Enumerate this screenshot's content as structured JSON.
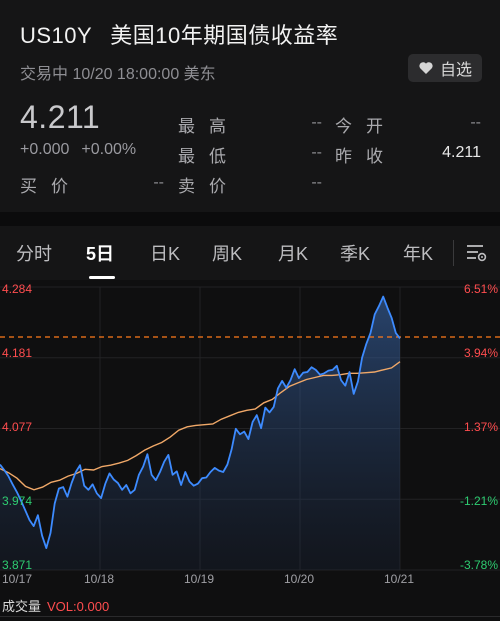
{
  "header": {
    "symbol": "US10Y",
    "name": "美国10年期国债收益率",
    "status": "交易中 10/20 18:00:00 美东",
    "watch_label": "自选",
    "price": "4.211",
    "change": "+0.000",
    "change_pct": "+0.00%"
  },
  "quote": {
    "high_label": "最高",
    "high_value": "--",
    "low_label": "最低",
    "low_value": "--",
    "open_label": "今开",
    "open_value": "--",
    "prev_close_label": "昨收",
    "prev_close_value": "4.211",
    "bid_label": "买价",
    "bid_value": "--",
    "ask_label": "卖价",
    "ask_value": "--"
  },
  "tabs": [
    "分时",
    "5日",
    "日K",
    "周K",
    "月K",
    "季K",
    "年K"
  ],
  "active_tab": "5日",
  "volume": {
    "label": "成交量",
    "value": "VOL:0.000"
  },
  "colors": {
    "up": "#ff4d4f",
    "down": "#2ecc71",
    "line": "#3d8bff",
    "avg": "#f0a868",
    "ref": "#ff7a1a"
  },
  "chart_data": {
    "type": "line",
    "y_ticks_left": [
      "4.284",
      "4.181",
      "4.077",
      "3.974",
      "3.871"
    ],
    "y_ticks_right": [
      "6.51%",
      "3.94%",
      "1.37%",
      "-1.21%",
      "-3.78%"
    ],
    "x_labels": [
      "10/17",
      "10/18",
      "10/19",
      "10/20",
      "10/21"
    ],
    "ylim": [
      3.871,
      4.284
    ],
    "reference_value": 4.211,
    "series": [
      {
        "values": [
          4.025,
          4.017,
          4.008,
          3.996,
          3.985,
          3.972,
          3.958,
          3.944,
          3.935,
          3.951,
          3.921,
          3.903,
          3.925,
          3.968,
          3.99,
          3.992,
          3.978,
          3.998,
          4.014,
          4.024,
          3.994,
          3.988,
          3.996,
          3.983,
          3.976,
          3.997,
          4.012,
          4.003,
          3.998,
          3.988,
          3.995,
          3.983,
          3.988,
          4.01,
          4.022,
          4.04,
          4.01,
          4.002,
          4.014,
          4.029,
          4.039,
          4.01,
          4.015,
          3.995,
          4.014,
          4.0,
          3.994,
          3.997,
          4.005,
          4.006,
          4.014,
          4.02,
          4.016,
          4.014,
          4.025,
          4.047,
          4.077,
          4.069,
          4.073,
          4.062,
          4.087,
          4.097,
          4.078,
          4.108,
          4.101,
          4.109,
          4.136,
          4.147,
          4.137,
          4.148,
          4.164,
          4.151,
          4.159,
          4.16,
          4.167,
          4.163,
          4.156,
          4.158,
          4.162,
          4.163,
          4.169,
          4.148,
          4.14,
          4.16,
          4.128,
          4.146,
          4.181,
          4.201,
          4.217,
          4.244,
          4.256,
          4.27,
          4.254,
          4.239,
          4.217,
          4.209
        ],
        "x_start": 0,
        "x_end": 4
      },
      {
        "values": [
          4.019,
          4.013,
          4.005,
          3.993,
          3.988,
          3.992,
          3.999,
          4.002,
          4.008,
          4.012,
          4.018,
          4.017,
          4.022,
          4.024,
          4.027,
          4.031,
          4.038,
          4.046,
          4.052,
          4.057,
          4.065,
          4.075,
          4.08,
          4.082,
          4.083,
          4.084,
          4.091,
          4.096,
          4.101,
          4.104,
          4.106,
          4.115,
          4.12,
          4.13,
          4.139,
          4.144,
          4.149,
          4.152,
          4.155,
          4.155,
          4.156,
          4.158,
          4.158,
          4.159,
          4.16,
          4.163,
          4.166,
          4.175
        ],
        "x_start": 0,
        "x_end": 4
      }
    ]
  }
}
